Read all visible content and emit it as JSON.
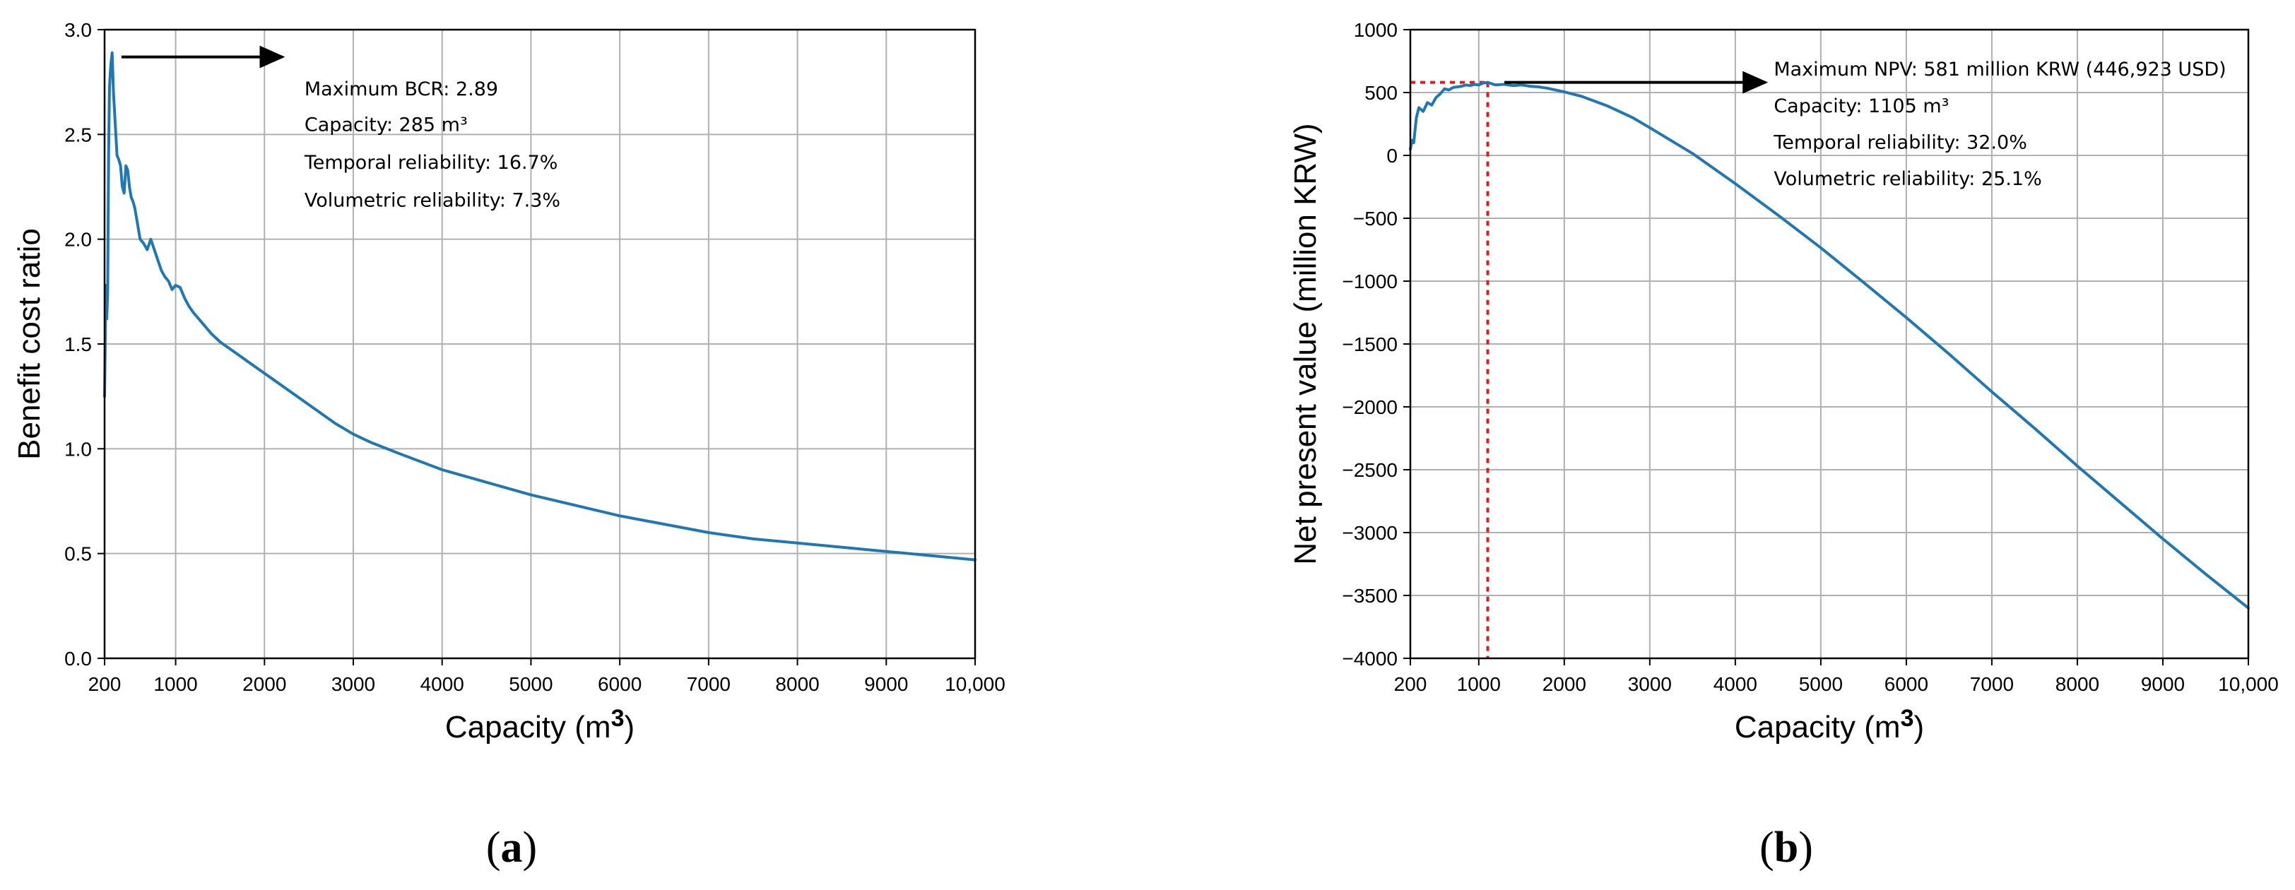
{
  "colors": {
    "series": "#1f77b4",
    "reference": "#e31a1c",
    "grid": "#b0b0b0"
  },
  "chart_data": [
    {
      "id": "a",
      "type": "line",
      "panel_label": "a",
      "xlabel": "Capacity (m",
      "xlabel_sup": "3",
      "xlabel_end": ")",
      "ylabel": "Benefit cost ratio",
      "xlim": [
        200,
        10000
      ],
      "ylim": [
        0,
        3.0
      ],
      "x_ticks": [
        200,
        1000,
        2000,
        3000,
        4000,
        5000,
        6000,
        7000,
        8000,
        9000,
        10000
      ],
      "x_tick_labels": [
        "200",
        "1000",
        "2000",
        "3000",
        "4000",
        "5000",
        "6000",
        "7000",
        "8000",
        "9000",
        "10,000"
      ],
      "y_ticks": [
        0,
        0.5,
        1.0,
        1.5,
        2.0,
        2.5,
        3.0
      ],
      "y_tick_labels": [
        "0.0",
        "0.5",
        "1.0",
        "1.5",
        "2.0",
        "2.5",
        "3.0"
      ],
      "grid": true,
      "series": [
        {
          "x": [
            200,
            215,
            225,
            235,
            245,
            255,
            265,
            275,
            285,
            300,
            320,
            340,
            360,
            380,
            400,
            420,
            440,
            460,
            480,
            500,
            520,
            540,
            560,
            580,
            600,
            640,
            680,
            720,
            760,
            800,
            840,
            880,
            920,
            960,
            1000,
            1050,
            1100,
            1150,
            1200,
            1300,
            1400,
            1500,
            1600,
            1700,
            1800,
            1900,
            2000,
            2200,
            2400,
            2600,
            2800,
            3000,
            3200,
            3500,
            4000,
            4500,
            5000,
            5500,
            6000,
            6500,
            7000,
            7500,
            8000,
            8500,
            9000,
            9500,
            10000
          ],
          "y": [
            1.25,
            1.78,
            1.62,
            1.75,
            2.4,
            2.72,
            2.8,
            2.85,
            2.89,
            2.7,
            2.55,
            2.4,
            2.38,
            2.35,
            2.25,
            2.22,
            2.35,
            2.33,
            2.25,
            2.2,
            2.18,
            2.15,
            2.1,
            2.05,
            2.0,
            1.98,
            1.95,
            2.0,
            1.95,
            1.9,
            1.85,
            1.82,
            1.8,
            1.76,
            1.78,
            1.77,
            1.72,
            1.68,
            1.65,
            1.6,
            1.55,
            1.51,
            1.48,
            1.45,
            1.42,
            1.39,
            1.36,
            1.3,
            1.24,
            1.18,
            1.12,
            1.07,
            1.03,
            0.98,
            0.9,
            0.84,
            0.78,
            0.73,
            0.68,
            0.64,
            0.6,
            0.57,
            0.55,
            0.53,
            0.51,
            0.49,
            0.47
          ]
        }
      ],
      "arrow": {
        "x_from": 390,
        "x_to": 2200,
        "y": 2.87
      },
      "annotations": [
        {
          "x": 2450,
          "y": 2.72,
          "text": "Maximum BCR: 2.89"
        },
        {
          "x": 2450,
          "y": 2.55,
          "text": "Capacity: 285 m³"
        },
        {
          "x": 2450,
          "y": 2.37,
          "text": "Temporal reliability: 16.7%"
        },
        {
          "x": 2450,
          "y": 2.19,
          "text": "Volumetric reliability: 7.3%"
        }
      ]
    },
    {
      "id": "b",
      "type": "line",
      "panel_label": "b",
      "xlabel": "Capacity (m",
      "xlabel_sup": "3",
      "xlabel_end": ")",
      "ylabel": "Net present value (million KRW)",
      "xlim": [
        200,
        10000
      ],
      "ylim": [
        -4000,
        1000
      ],
      "x_ticks": [
        200,
        1000,
        2000,
        3000,
        4000,
        5000,
        6000,
        7000,
        8000,
        9000,
        10000
      ],
      "x_tick_labels": [
        "200",
        "1000",
        "2000",
        "3000",
        "4000",
        "5000",
        "6000",
        "7000",
        "8000",
        "9000",
        "10,000"
      ],
      "y_ticks": [
        -4000,
        -3500,
        -3000,
        -2500,
        -2000,
        -1500,
        -1000,
        -500,
        0,
        500,
        1000
      ],
      "y_tick_labels": [
        "−4000",
        "−3500",
        "−3000",
        "−2500",
        "−2000",
        "−1500",
        "−1000",
        "−500",
        "0",
        "500",
        "1000"
      ],
      "grid": true,
      "series": [
        {
          "x": [
            200,
            220,
            240,
            270,
            300,
            350,
            400,
            450,
            500,
            550,
            600,
            650,
            700,
            750,
            800,
            850,
            900,
            950,
            1000,
            1050,
            1105,
            1150,
            1200,
            1300,
            1400,
            1500,
            1600,
            1700,
            1800,
            2000,
            2200,
            2500,
            2800,
            3000,
            3500,
            4000,
            4500,
            5000,
            5500,
            6000,
            6500,
            7000,
            7500,
            8000,
            8500,
            9000,
            9500,
            10000
          ],
          "y": [
            50,
            120,
            100,
            300,
            380,
            350,
            420,
            400,
            460,
            490,
            530,
            520,
            540,
            545,
            550,
            560,
            555,
            565,
            560,
            575,
            581,
            570,
            560,
            565,
            555,
            560,
            550,
            545,
            535,
            505,
            470,
            395,
            300,
            220,
            15,
            -225,
            -475,
            -735,
            -1010,
            -1290,
            -1580,
            -1880,
            -2170,
            -2470,
            -2760,
            -3050,
            -3330,
            -3600
          ]
        }
      ],
      "reference_point": {
        "x": 1105,
        "y": 581
      },
      "arrow": {
        "x_from": 1300,
        "x_to": 4350,
        "y": 581
      },
      "annotations": [
        {
          "x": 4450,
          "y": 690,
          "text": "Maximum NPV: 581 million KRW (446,923 USD)"
        },
        {
          "x": 4450,
          "y": 400,
          "text": "Capacity: 1105 m³"
        },
        {
          "x": 4450,
          "y": 110,
          "text": "Temporal reliability: 32.0%"
        },
        {
          "x": 4450,
          "y": -180,
          "text": "Volumetric reliability: 25.1%"
        }
      ]
    }
  ]
}
